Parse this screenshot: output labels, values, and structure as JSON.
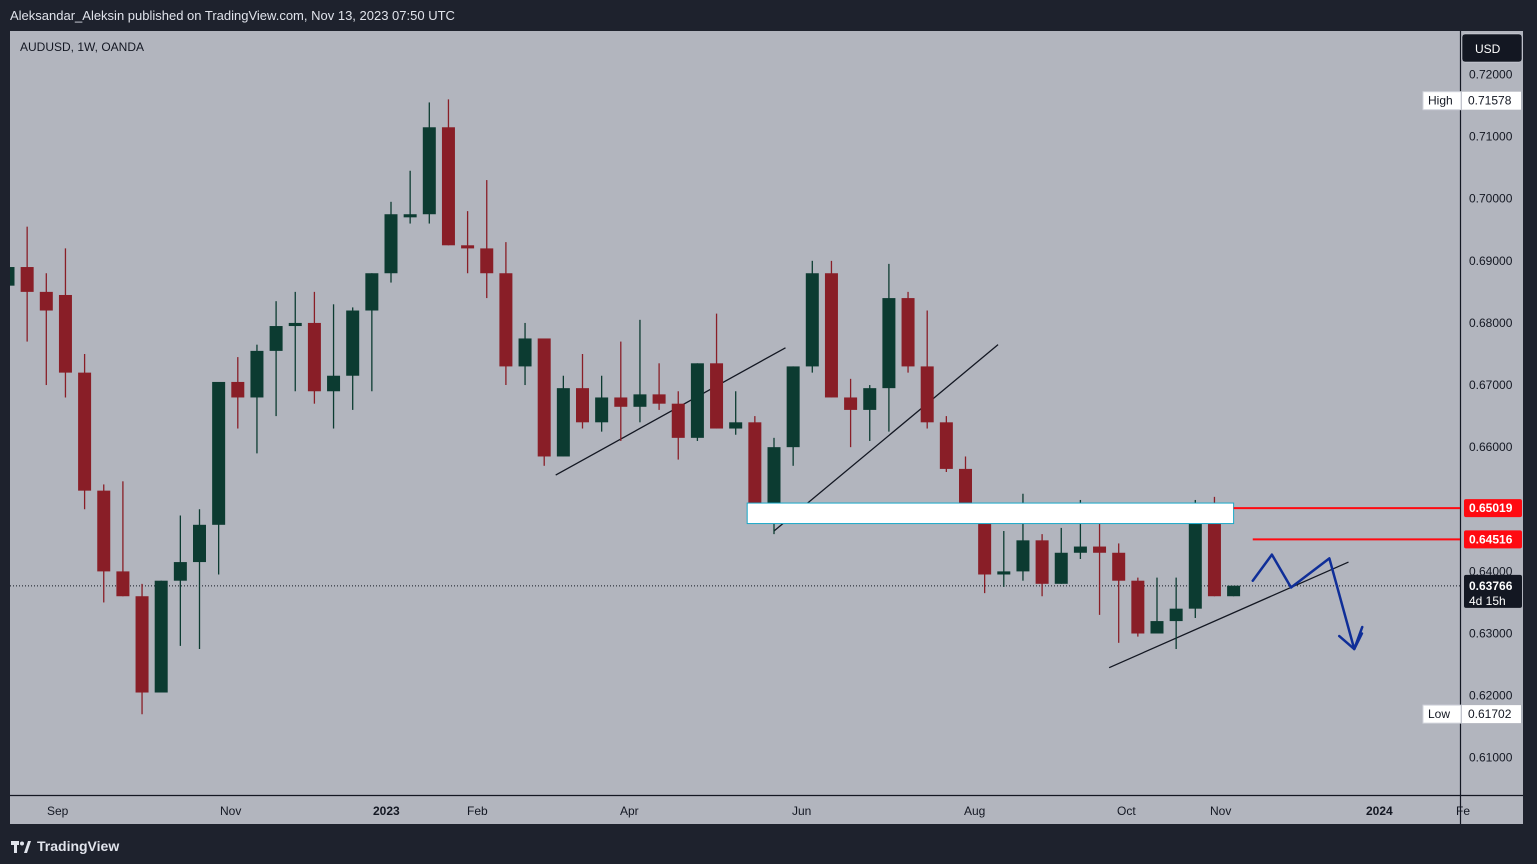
{
  "header": {
    "title": "Aleksandar_Aleksin published on TradingView.com, Nov 13, 2023 07:50 UTC"
  },
  "footer": {
    "brand": "TradingView"
  },
  "chart_data": {
    "type": "candlestick",
    "symbol": "AUDUSD, 1W, OANDA",
    "currency": "USD",
    "x_ticks": [
      {
        "label": "Sep",
        "bold": false
      },
      {
        "label": "Nov",
        "bold": false
      },
      {
        "label": "2023",
        "bold": true
      },
      {
        "label": "Feb",
        "bold": false
      },
      {
        "label": "Apr",
        "bold": false
      },
      {
        "label": "Jun",
        "bold": false
      },
      {
        "label": "Aug",
        "bold": false
      },
      {
        "label": "Oct",
        "bold": false
      },
      {
        "label": "Nov",
        "bold": false
      },
      {
        "label": "2024",
        "bold": true
      },
      {
        "label": "Fe",
        "bold": false
      }
    ],
    "y_ticks": [
      "0.72000",
      "0.71000",
      "0.70000",
      "0.69000",
      "0.68000",
      "0.67000",
      "0.66000",
      "0.65000",
      "0.64000",
      "0.63000",
      "0.62000",
      "0.61000"
    ],
    "ylim": [
      0.604,
      0.727
    ],
    "candles": [
      [
        0.686,
        0.69,
        0.683,
        0.689
      ],
      [
        0.689,
        0.6955,
        0.677,
        0.685
      ],
      [
        0.685,
        0.688,
        0.67,
        0.682
      ],
      [
        0.6845,
        0.692,
        0.668,
        0.672
      ],
      [
        0.672,
        0.675,
        0.65,
        0.653
      ],
      [
        0.653,
        0.654,
        0.635,
        0.64
      ],
      [
        0.64,
        0.6545,
        0.636,
        0.636
      ],
      [
        0.636,
        0.638,
        0.617,
        0.6205
      ],
      [
        0.6205,
        0.6385,
        0.6215,
        0.6385
      ],
      [
        0.6385,
        0.649,
        0.628,
        0.6415
      ],
      [
        0.6415,
        0.65,
        0.6275,
        0.6475
      ],
      [
        0.6475,
        0.6705,
        0.6395,
        0.6705
      ],
      [
        0.6705,
        0.6745,
        0.663,
        0.668
      ],
      [
        0.668,
        0.6765,
        0.659,
        0.6755
      ],
      [
        0.6755,
        0.6835,
        0.665,
        0.6795
      ],
      [
        0.6795,
        0.685,
        0.669,
        0.68
      ],
      [
        0.68,
        0.685,
        0.667,
        0.669
      ],
      [
        0.669,
        0.683,
        0.663,
        0.6715
      ],
      [
        0.6715,
        0.6825,
        0.666,
        0.682
      ],
      [
        0.682,
        0.688,
        0.669,
        0.688
      ],
      [
        0.688,
        0.6995,
        0.6865,
        0.6975
      ],
      [
        0.697,
        0.7045,
        0.696,
        0.6975
      ],
      [
        0.6975,
        0.7155,
        0.696,
        0.7115
      ],
      [
        0.7115,
        0.716,
        0.6925,
        0.6925
      ],
      [
        0.6925,
        0.698,
        0.688,
        0.692
      ],
      [
        0.692,
        0.703,
        0.684,
        0.688
      ],
      [
        0.688,
        0.693,
        0.67,
        0.673
      ],
      [
        0.673,
        0.68,
        0.67,
        0.6775
      ],
      [
        0.6775,
        0.6765,
        0.657,
        0.6585
      ],
      [
        0.6585,
        0.6715,
        0.6585,
        0.6695
      ],
      [
        0.6695,
        0.675,
        0.663,
        0.664
      ],
      [
        0.664,
        0.6715,
        0.6625,
        0.668
      ],
      [
        0.668,
        0.677,
        0.661,
        0.6665
      ],
      [
        0.6665,
        0.6805,
        0.664,
        0.6685
      ],
      [
        0.6685,
        0.6735,
        0.666,
        0.667
      ],
      [
        0.667,
        0.669,
        0.658,
        0.6615
      ],
      [
        0.6615,
        0.6735,
        0.661,
        0.6735
      ],
      [
        0.6735,
        0.6815,
        0.663,
        0.663
      ],
      [
        0.663,
        0.669,
        0.662,
        0.664
      ],
      [
        0.664,
        0.665,
        0.648,
        0.651
      ],
      [
        0.651,
        0.6615,
        0.646,
        0.66
      ],
      [
        0.66,
        0.673,
        0.657,
        0.673
      ],
      [
        0.673,
        0.69,
        0.672,
        0.688
      ],
      [
        0.688,
        0.69,
        0.668,
        0.668
      ],
      [
        0.668,
        0.671,
        0.66,
        0.666
      ],
      [
        0.666,
        0.67,
        0.661,
        0.6695
      ],
      [
        0.6695,
        0.6895,
        0.6625,
        0.684
      ],
      [
        0.684,
        0.685,
        0.672,
        0.673
      ],
      [
        0.673,
        0.682,
        0.663,
        0.664
      ],
      [
        0.664,
        0.665,
        0.656,
        0.6565
      ],
      [
        0.6565,
        0.6585,
        0.649,
        0.649
      ],
      [
        0.649,
        0.65,
        0.6365,
        0.6395
      ],
      [
        0.6395,
        0.6465,
        0.6375,
        0.64
      ],
      [
        0.64,
        0.6525,
        0.6385,
        0.645
      ],
      [
        0.645,
        0.646,
        0.636,
        0.638
      ],
      [
        0.638,
        0.647,
        0.638,
        0.643
      ],
      [
        0.643,
        0.6515,
        0.642,
        0.644
      ],
      [
        0.644,
        0.6505,
        0.633,
        0.643
      ],
      [
        0.643,
        0.6445,
        0.6285,
        0.6385
      ],
      [
        0.6385,
        0.639,
        0.6295,
        0.63
      ],
      [
        0.63,
        0.639,
        0.63,
        0.632
      ],
      [
        0.632,
        0.639,
        0.6275,
        0.634
      ],
      [
        0.634,
        0.6515,
        0.6325,
        0.651
      ],
      [
        0.651,
        0.652,
        0.636,
        0.636
      ],
      [
        0.636,
        0.6375,
        0.636,
        0.6377
      ]
    ],
    "zone": {
      "y_top": 0.651,
      "y_bottom": 0.6477,
      "index_start": 38.6,
      "index_end": 64.0
    },
    "trendlines": [
      {
        "from": [
          28.6,
          0.6555
        ],
        "to": [
          40.6,
          0.676
        ]
      },
      {
        "from": [
          40.0,
          0.6465
        ],
        "to": [
          51.7,
          0.6765
        ]
      },
      {
        "from": [
          57.5,
          0.6245
        ],
        "to": [
          70.0,
          0.6415
        ]
      }
    ],
    "price_levels": [
      {
        "value": 0.65019,
        "label": "0.65019",
        "index_start": 64.0
      },
      {
        "value": 0.64516,
        "label": "0.64516",
        "index_start": 65.0
      }
    ],
    "projection": [
      [
        65.0,
        0.6385
      ],
      [
        66.0,
        0.6427
      ],
      [
        67.0,
        0.6374
      ],
      [
        69.0,
        0.6421
      ],
      [
        70.3,
        0.6275
      ],
      [
        70.7,
        0.63
      ]
    ],
    "current": {
      "value": 0.63766,
      "label": "0.63766",
      "countdown": "4d 15h"
    },
    "high": {
      "label": "High",
      "value": "0.71578",
      "y": 0.71578
    },
    "low": {
      "label": "Low",
      "value": "0.61702",
      "y": 0.61702
    },
    "colors": {
      "up": "#0c3b31",
      "down": "#891e27",
      "background": "#b2b5be",
      "level": "#ff0a11",
      "zone_border": "#19a7c7",
      "projection": "#0f2e98",
      "trend": "#131722"
    }
  }
}
